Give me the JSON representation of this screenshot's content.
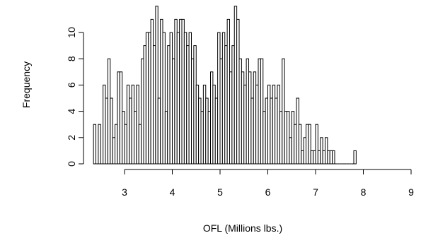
{
  "chart_data": {
    "type": "bar",
    "title": "",
    "xlabel": "OFL (Millions lbs.)",
    "ylabel": "Frequency",
    "xlim": [
      2.3,
      8.8
    ],
    "ylim": [
      0,
      12
    ],
    "x_ticks": [
      3,
      4,
      5,
      6,
      7,
      8,
      9
    ],
    "y_ticks": [
      0,
      2,
      4,
      6,
      8,
      10
    ],
    "grid": false,
    "legend": "none",
    "bin_width": 0.05,
    "bin_start": 2.35,
    "bar_fill": "#ffffff",
    "bar_stroke": "#000000",
    "series": [
      {
        "values": [
          3,
          0,
          3,
          0,
          6,
          5,
          8,
          5,
          2,
          3,
          7,
          7,
          4,
          3,
          6,
          5,
          6,
          4,
          6,
          3,
          8,
          9,
          10,
          10,
          11,
          9,
          12,
          5,
          11,
          10,
          4,
          9,
          10,
          8,
          11,
          10,
          11,
          11,
          10,
          9,
          10,
          8,
          9,
          6,
          5,
          4,
          6,
          5,
          4,
          7,
          6,
          5,
          10,
          8,
          10,
          9,
          11,
          7,
          9,
          12,
          11,
          8,
          7,
          6,
          8,
          7,
          5,
          7,
          6,
          8,
          8,
          4,
          5,
          6,
          5,
          6,
          5,
          6,
          4,
          8,
          4,
          4,
          2,
          4,
          3,
          5,
          3,
          1,
          2,
          3,
          3,
          1,
          1,
          3,
          1,
          2,
          1,
          2,
          1,
          1,
          1,
          0,
          0,
          0,
          0,
          0,
          0,
          0,
          0,
          1
        ]
      }
    ]
  }
}
